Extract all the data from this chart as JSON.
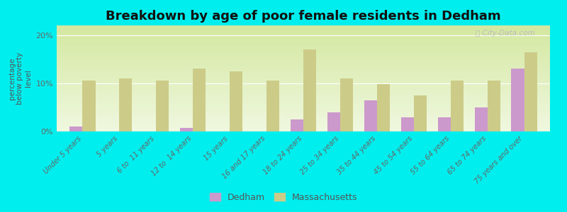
{
  "title": "Breakdown by age of poor female residents in Dedham",
  "ylabel": "percentage\nbelow poverty\nlevel",
  "categories": [
    "Under 5 years",
    "5 years",
    "6 to  11 years",
    "12 to  14 years",
    "15 years",
    "16 and 17 years",
    "18 to 24 years",
    "25 to 34 years",
    "35 to 44 years",
    "45 to 54 years",
    "55 to 64 years",
    "65 to 74 years",
    "75 years and over"
  ],
  "dedham_values": [
    1.0,
    0.0,
    0.0,
    0.8,
    0.0,
    0.0,
    2.5,
    4.0,
    6.5,
    3.0,
    3.0,
    5.0,
    13.0
  ],
  "mass_values": [
    10.5,
    11.0,
    10.5,
    13.0,
    12.5,
    10.5,
    17.0,
    11.0,
    9.8,
    7.5,
    10.5,
    10.5,
    16.5
  ],
  "dedham_color": "#cc99cc",
  "mass_color": "#cccc88",
  "background_color": "#00eeee",
  "plot_bg_top": "#d4e8a0",
  "plot_bg_bottom": "#f0f8e0",
  "ylim": [
    0,
    22
  ],
  "yticks": [
    0,
    10,
    20
  ],
  "ytick_labels": [
    "0%",
    "10%",
    "20%"
  ],
  "bar_width": 0.35,
  "title_fontsize": 13,
  "legend_dedham": "Dedham",
  "legend_mass": "Massachusetts"
}
